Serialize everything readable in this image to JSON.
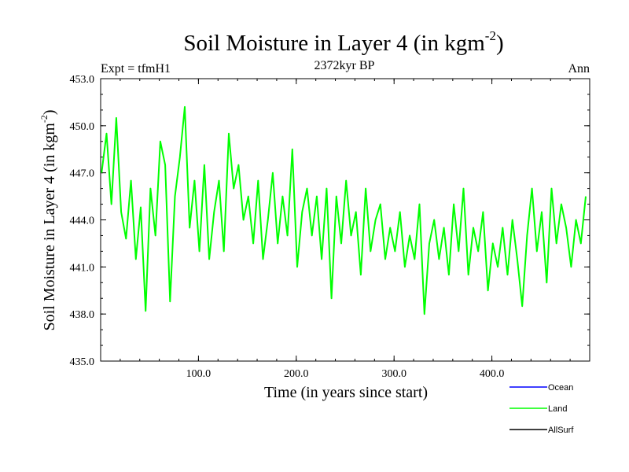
{
  "chart_data": {
    "type": "line",
    "title": "Soil Moisture in Layer 4 (in kgm",
    "title_sup": "-2",
    "title_close": ")",
    "subtitle": "2372kyr BP",
    "left_label": "Expt = tfmH1",
    "right_label": "Ann",
    "xlabel": "Time (in years since start)",
    "ylabel": "Soil Moisture in Layer 4 (in kgm",
    "ylabel_sup": "-2",
    "ylabel_close": ")",
    "xlim": [
      0,
      500
    ],
    "ylim": [
      435.0,
      453.0
    ],
    "x_ticks": [
      100,
      200,
      300,
      400
    ],
    "x_tick_labels": [
      "100.0",
      "200.0",
      "300.0",
      "400.0"
    ],
    "y_ticks": [
      435,
      438,
      441,
      444,
      447,
      450,
      453
    ],
    "y_tick_labels": [
      "435.0",
      "438.0",
      "441.0",
      "444.0",
      "447.0",
      "450.0",
      "453.0"
    ],
    "legend_position": "bottom-right",
    "legend": [
      {
        "name": "Ocean",
        "color": "#0000ff"
      },
      {
        "name": "Land",
        "color": "#00ff00"
      },
      {
        "name": "AllSurf",
        "color": "#000000"
      }
    ],
    "series": [
      {
        "name": "Land",
        "color": "#00ff00",
        "x_start": 1,
        "x_step": 5,
        "values": [
          447.0,
          449.5,
          445.0,
          450.5,
          444.5,
          442.8,
          446.5,
          441.5,
          444.8,
          438.2,
          446.0,
          443.0,
          449.0,
          447.5,
          438.8,
          445.5,
          448.0,
          451.2,
          443.5,
          446.5,
          442.0,
          447.5,
          441.5,
          444.5,
          446.5,
          442.0,
          449.5,
          446.0,
          447.5,
          444.0,
          445.5,
          442.5,
          446.5,
          441.5,
          444.0,
          447.0,
          442.5,
          445.5,
          443.0,
          448.5,
          441.0,
          444.5,
          446.0,
          443.0,
          445.5,
          441.5,
          446.0,
          439.0,
          445.5,
          442.5,
          446.5,
          443.0,
          444.5,
          440.5,
          446.0,
          442.0,
          444.0,
          445.0,
          441.5,
          443.5,
          442.0,
          444.5,
          441.0,
          443.0,
          441.5,
          445.0,
          438.0,
          442.5,
          444.0,
          441.5,
          443.5,
          440.5,
          445.0,
          442.0,
          446.0,
          440.5,
          443.5,
          442.0,
          444.5,
          439.5,
          442.5,
          441.0,
          443.5,
          440.5,
          444.0,
          441.5,
          438.5,
          443.0,
          446.0,
          442.0,
          444.5,
          440.0,
          446.0,
          442.5,
          445.0,
          443.5,
          441.0,
          444.0,
          442.5,
          445.5
        ]
      }
    ]
  }
}
